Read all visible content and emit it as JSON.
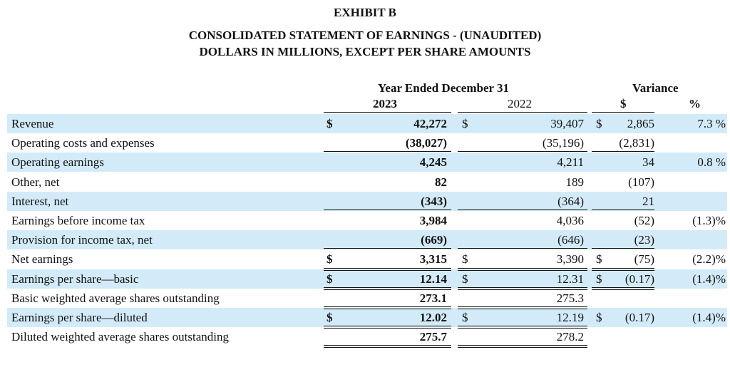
{
  "header": {
    "exhibit": "EXHIBIT B",
    "title": "CONSOLIDATED STATEMENT OF EARNINGS - (UNAUDITED)",
    "subtitle": "DOLLARS IN MILLIONS, EXCEPT PER SHARE AMOUNTS"
  },
  "columns": {
    "period_group": "Year Ended December 31",
    "year_current": "2023",
    "year_prior": "2022",
    "variance_group": "Variance",
    "variance_dollar": "$",
    "variance_pct": "%"
  },
  "colors": {
    "band": "#d3ebf8",
    "text": "#111111"
  },
  "rows": [
    {
      "label": "Revenue",
      "cur_sym": "$",
      "cur": "42,272",
      "prior_sym": "$",
      "prior": "39,407",
      "var_sym": "$",
      "var": "2,865",
      "pct": "7.3 %"
    },
    {
      "label": "Operating costs and expenses",
      "cur_sym": "",
      "cur": "(38,027)",
      "prior_sym": "",
      "prior": "(35,196)",
      "var_sym": "",
      "var": "(2,831)",
      "pct": ""
    },
    {
      "label": "Operating earnings",
      "cur_sym": "",
      "cur": "4,245",
      "prior_sym": "",
      "prior": "4,211",
      "var_sym": "",
      "var": "34",
      "pct": "0.8 %"
    },
    {
      "label": "Other, net",
      "cur_sym": "",
      "cur": "82",
      "prior_sym": "",
      "prior": "189",
      "var_sym": "",
      "var": "(107)",
      "pct": ""
    },
    {
      "label": "Interest, net",
      "cur_sym": "",
      "cur": "(343)",
      "prior_sym": "",
      "prior": "(364)",
      "var_sym": "",
      "var": "21",
      "pct": ""
    },
    {
      "label": "Earnings before income tax",
      "cur_sym": "",
      "cur": "3,984",
      "prior_sym": "",
      "prior": "4,036",
      "var_sym": "",
      "var": "(52)",
      "pct": "(1.3)%"
    },
    {
      "label": "Provision for income tax, net",
      "cur_sym": "",
      "cur": "(669)",
      "prior_sym": "",
      "prior": "(646)",
      "var_sym": "",
      "var": "(23)",
      "pct": ""
    },
    {
      "label": "Net earnings",
      "cur_sym": "$",
      "cur": "3,315",
      "prior_sym": "$",
      "prior": "3,390",
      "var_sym": "$",
      "var": "(75)",
      "pct": "(2.2)%"
    },
    {
      "label": "Earnings per share—basic",
      "cur_sym": "$",
      "cur": "12.14",
      "prior_sym": "$",
      "prior": "12.31",
      "var_sym": "$",
      "var": "(0.17)",
      "pct": "(1.4)%"
    },
    {
      "label": "Basic weighted average shares outstanding",
      "cur_sym": "",
      "cur": "273.1",
      "prior_sym": "",
      "prior": "275.3",
      "var_sym": "",
      "var": "",
      "pct": ""
    },
    {
      "label": "Earnings per share—diluted",
      "cur_sym": "$",
      "cur": "12.02",
      "prior_sym": "$",
      "prior": "12.19",
      "var_sym": "$",
      "var": "(0.17)",
      "pct": "(1.4)%"
    },
    {
      "label": "Diluted weighted average shares outstanding",
      "cur_sym": "",
      "cur": "275.7",
      "prior_sym": "",
      "prior": "278.2",
      "var_sym": "",
      "var": "",
      "pct": ""
    }
  ]
}
